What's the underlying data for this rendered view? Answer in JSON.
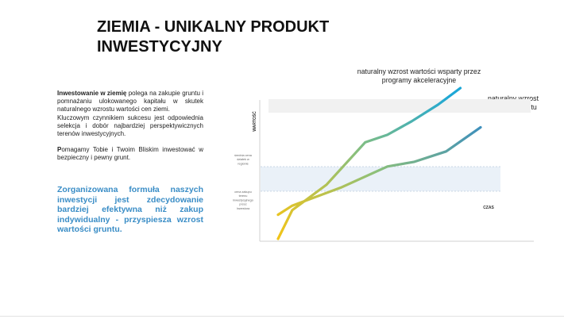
{
  "slide": {
    "title_line1": "ZIEMIA - UNIKALNY PRODUKT",
    "title_line2": "INWESTYCYJNY"
  },
  "text": {
    "para1_bold": "Inwestowanie w ziemię",
    "para1_rest": " polega na zakupie gruntu i pomnażaniu ulokowanego kapitału w skutek naturalnego wzrostu wartości cen ziemi.",
    "para2": "Kluczowym czynnikiem sukcesu jest odpowiednia selekcja i dobór najbardziej perspektywicznych terenów inwestycyjnych.",
    "para3_initial": "P",
    "para3_rest": "omagamy Tobie i Twoim Bliskim inwestować w bezpieczny i pewny grunt.",
    "highlight": "Zorganizowana formuła naszych inwestycji jest zdecydowanie bardziej efektywna niż zakup indywidualny - przyspiesza wzrost wartości gruntu."
  },
  "chart_data": {
    "type": "line",
    "ylabel": "WARTOŚĆ",
    "xlabel": "CZAS",
    "annotations": {
      "avg_price": "średnia cena działek w regionie",
      "purchase_price": "cena zakupu terenu inwestycyjnego przez Inwestora"
    },
    "series": [
      {
        "name": "naturalny wzrost wartości wsparty przez programy akceleracyjne",
        "x": [
          0,
          0.07,
          0.24,
          0.43,
          0.54,
          0.66,
          0.79,
          0.9
        ],
        "y": [
          0,
          0.19,
          0.36,
          0.64,
          0.69,
          0.78,
          0.89,
          1.0
        ]
      },
      {
        "name": "naturalny wzrost wartości gruntu",
        "x": [
          0,
          0.07,
          0.31,
          0.54,
          0.67,
          0.83,
          1.0
        ],
        "y": [
          0.16,
          0.22,
          0.34,
          0.48,
          0.51,
          0.58,
          0.74
        ]
      }
    ],
    "colors": {
      "start": "#f2c418",
      "mid": "#8cc07a",
      "end1": "#1ea7d6",
      "end2": "#3a8dc0"
    }
  }
}
